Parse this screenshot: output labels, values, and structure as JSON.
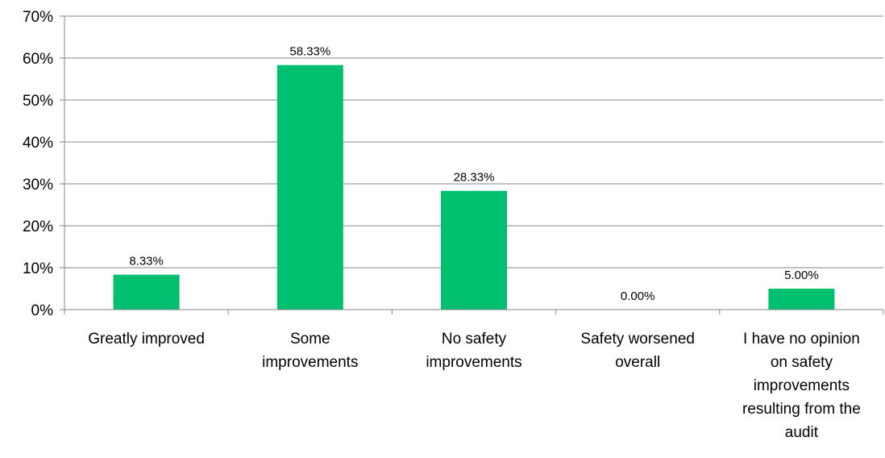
{
  "chart_data": {
    "type": "bar",
    "categories": [
      "Greatly improved",
      "Some improvements",
      "No safety improvements",
      "Safety worsened overall",
      "I have no opinion on safety improvements resulting from the audit"
    ],
    "category_lines": [
      [
        "Greatly improved"
      ],
      [
        "Some",
        "improvements"
      ],
      [
        "No safety",
        "improvements"
      ],
      [
        "Safety worsened",
        "overall"
      ],
      [
        "I have no opinion",
        "on safety",
        "improvements",
        "resulting from the",
        "audit"
      ]
    ],
    "values": [
      8.33,
      58.33,
      28.33,
      0.0,
      5.0
    ],
    "data_labels": [
      "8.33%",
      "58.33%",
      "28.33%",
      "0.00%",
      "5.00%"
    ],
    "yticks": [
      "0%",
      "10%",
      "20%",
      "30%",
      "40%",
      "50%",
      "60%",
      "70%"
    ],
    "ylim": [
      0,
      70
    ],
    "grid": true,
    "legend": "none",
    "bar_color": "#00BF6F",
    "title": "",
    "xlabel": "",
    "ylabel": ""
  }
}
